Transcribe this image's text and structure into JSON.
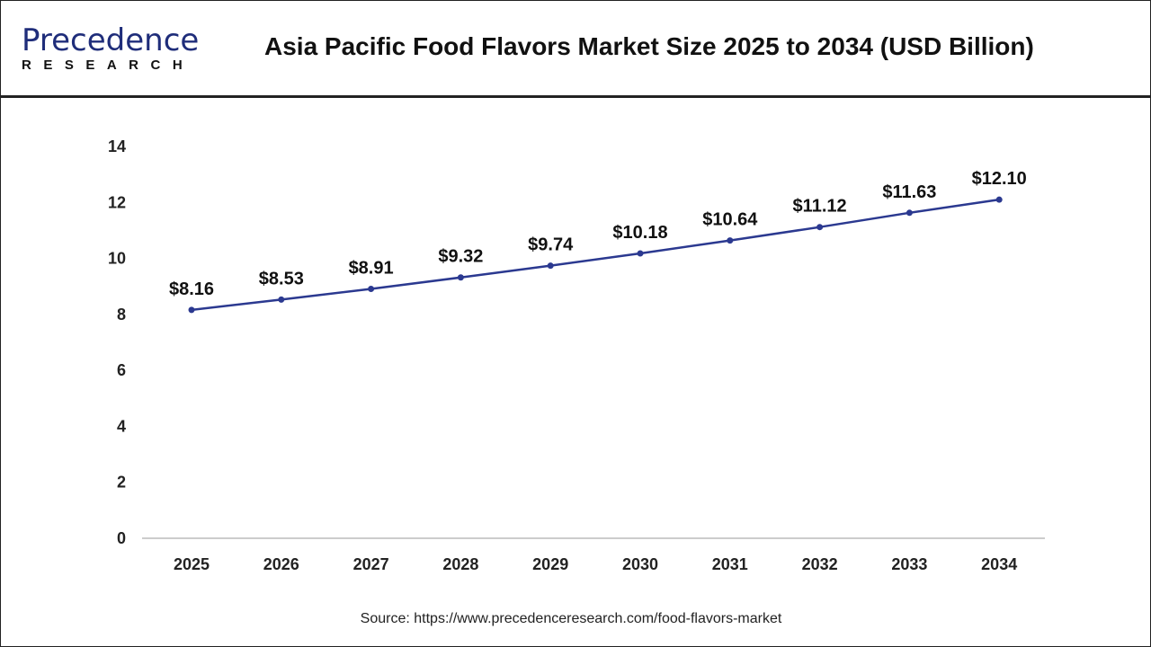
{
  "header": {
    "logo_text": "Precedence",
    "logo_sub": "RESEARCH",
    "title": "Asia Pacific Food Flavors Market Size 2025 to 2034 (USD Billion)"
  },
  "source": "Source: https://www.precedenceresearch.com/food-flavors-market",
  "colors": {
    "line": "#2b3990",
    "axis": "#bbbbbb"
  },
  "chart_data": {
    "type": "line",
    "title": "Asia Pacific Food Flavors Market Size 2025 to 2034 (USD Billion)",
    "categories": [
      "2025",
      "2026",
      "2027",
      "2028",
      "2029",
      "2030",
      "2031",
      "2032",
      "2033",
      "2034"
    ],
    "values": [
      8.16,
      8.53,
      8.91,
      9.32,
      9.74,
      10.18,
      10.64,
      11.12,
      11.63,
      12.1
    ],
    "data_labels": [
      "$8.16",
      "$8.53",
      "$8.91",
      "$9.32",
      "$9.74",
      "$10.18",
      "$10.64",
      "$11.12",
      "$11.63",
      "$12.10"
    ],
    "yticks": [
      "0",
      "2",
      "4",
      "6",
      "8",
      "10",
      "12",
      "14"
    ],
    "ylim": [
      0,
      14
    ],
    "xlabel": "",
    "ylabel": "",
    "grid": false
  }
}
